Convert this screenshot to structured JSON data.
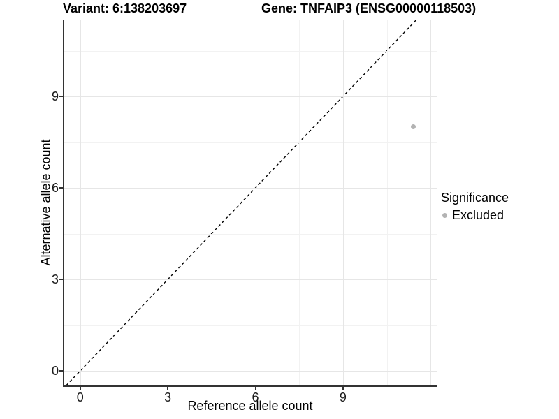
{
  "titles": {
    "variant": "Variant: 6:138203697",
    "gene": "Gene: TNFAIP3 (ENSG00000118503)"
  },
  "chart_data": {
    "type": "scatter",
    "xlabel": "Reference allele count",
    "ylabel": "Alternative allele count",
    "xlim": [
      -0.57,
      12.21
    ],
    "ylim": [
      -0.48,
      11.52
    ],
    "x_ticks": [
      0,
      3,
      6,
      9
    ],
    "y_ticks": [
      0,
      3,
      6,
      9
    ],
    "x_major_gridlines": [
      0,
      3,
      6,
      9,
      12
    ],
    "x_minor_gridlines": [
      1.5,
      4.5,
      7.5,
      10.5
    ],
    "y_major_gridlines": [
      0,
      3,
      6,
      9
    ],
    "y_minor_gridlines": [
      1.5,
      4.5,
      7.5,
      10.5
    ],
    "grid": true,
    "legend_position": "right",
    "series": [
      {
        "name": "Excluded",
        "color": "#b3b3b3",
        "points": [
          {
            "x": 11.4,
            "y": 8
          }
        ]
      }
    ],
    "reference_line": {
      "kind": "identity y=x",
      "style": "dashed",
      "color": "#000000"
    }
  },
  "legend": {
    "title": "Significance",
    "items": [
      {
        "label": "Excluded",
        "color": "#b3b3b3",
        "marker": "dot-icon"
      }
    ]
  },
  "colors": {
    "axis_line": "#333333",
    "major_grid": "#e6e6e6",
    "minor_grid": "#f2f2f2",
    "background": "#ffffff"
  }
}
